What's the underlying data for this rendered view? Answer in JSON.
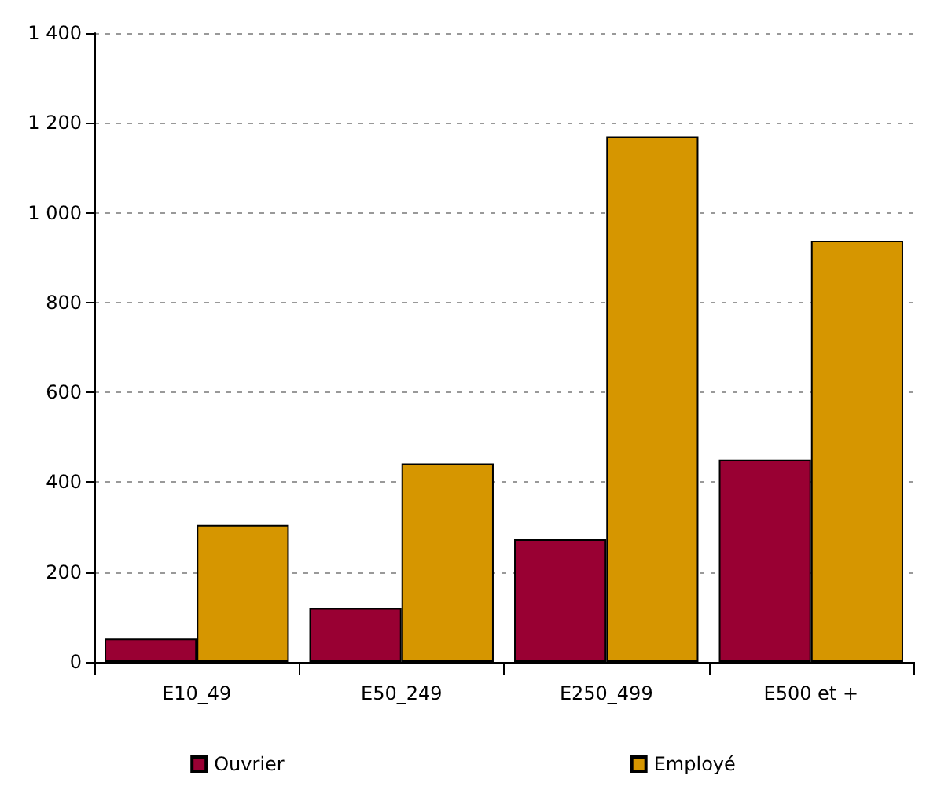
{
  "chart_data": {
    "type": "bar",
    "categories": [
      "E10_49",
      "E50_249",
      "E250_499",
      "E500 et +"
    ],
    "series": [
      {
        "name": "Ouvrier",
        "color": "#990033",
        "values": [
          52,
          120,
          273,
          450
        ]
      },
      {
        "name": "Employé",
        "color": "#d69600",
        "values": [
          305,
          442,
          1170,
          938
        ]
      }
    ],
    "ylim": [
      0,
      1400
    ],
    "yticks": [
      0,
      200,
      400,
      600,
      800,
      {
        "value": 1000,
        "label": "1 000"
      },
      {
        "value": 1200,
        "label": "1 200"
      },
      {
        "value": 1400,
        "label": "1 400"
      }
    ],
    "grid": "y",
    "legend": "bottom"
  }
}
